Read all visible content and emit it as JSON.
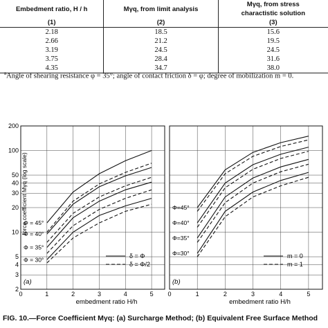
{
  "table": {
    "headers": [
      {
        "line1": "Embedment ratio, H / h",
        "line2": "(1)"
      },
      {
        "line1": "Mγq, from limit analysis",
        "line2": "(2)"
      },
      {
        "line1": "Mγq, from stress",
        "line1b": "charactistic solution",
        "line2": "(3)"
      }
    ],
    "rows": [
      [
        "2.18",
        "18.5",
        "15.6"
      ],
      [
        "2.66",
        "21.2",
        "19.5"
      ],
      [
        "3.19",
        "24.5",
        "24.5"
      ],
      [
        "3.75",
        "28.4",
        "31.6"
      ],
      [
        "4.35",
        "34.7",
        "38.0"
      ]
    ]
  },
  "footnote": {
    "marker": "a",
    "text": "Angle of shearing resistance φ = 35°; angle of contact friction δ = φ; degree of mobilization m = 0."
  },
  "chart_data": [
    {
      "type": "line",
      "panel_label": "(a)",
      "xlabel": "embedment ratio H/h",
      "ylabel": "force coefficient Mγq (log scale)",
      "xlim": [
        0,
        5.5
      ],
      "ylim": [
        2,
        200
      ],
      "yscale": "log",
      "xticks": [
        0,
        1,
        2,
        3,
        4,
        5
      ],
      "yticks": [
        2,
        3,
        4,
        5,
        10,
        20,
        30,
        40,
        50,
        100,
        200
      ],
      "yticklabels": [
        "2",
        "3",
        "4",
        "5",
        "10",
        "20",
        "30",
        "40",
        "50",
        "100",
        "200"
      ],
      "curve_labels": [
        "Φ = 45°",
        "Φ = 40°",
        "Φ = 35°",
        "Φ = 30°"
      ],
      "legend": [
        {
          "label": "δ = Φ",
          "style": "solid"
        },
        {
          "label": "δ = Φ/2",
          "style": "dashed"
        }
      ],
      "legend_position": "lower-right",
      "series": [
        {
          "phi": 45,
          "style": "solid",
          "x": [
            1,
            2,
            3,
            4,
            5
          ],
          "y": [
            13,
            31,
            52,
            75,
            100
          ]
        },
        {
          "phi": 45,
          "style": "dashed",
          "x": [
            1,
            2,
            3,
            4,
            5
          ],
          "y": [
            10,
            24,
            39,
            54,
            70
          ]
        },
        {
          "phi": 40,
          "style": "solid",
          "x": [
            1,
            2,
            3,
            4,
            5
          ],
          "y": [
            9.5,
            22,
            36,
            49,
            62
          ]
        },
        {
          "phi": 40,
          "style": "dashed",
          "x": [
            1,
            2,
            3,
            4,
            5
          ],
          "y": [
            7.5,
            17,
            27,
            37,
            47
          ]
        },
        {
          "phi": 35,
          "style": "solid",
          "x": [
            1,
            2,
            3,
            4,
            5
          ],
          "y": [
            6.5,
            15,
            24,
            33,
            41
          ]
        },
        {
          "phi": 35,
          "style": "dashed",
          "x": [
            1,
            2,
            3,
            4,
            5
          ],
          "y": [
            5.5,
            12,
            19,
            26,
            33
          ]
        },
        {
          "phi": 30,
          "style": "solid",
          "x": [
            1,
            2,
            3,
            4,
            5
          ],
          "y": [
            4.6,
            10,
            16,
            21,
            26
          ]
        },
        {
          "phi": 30,
          "style": "dashed",
          "x": [
            1,
            2,
            3,
            4,
            5
          ],
          "y": [
            4.2,
            8.5,
            13,
            18,
            22
          ]
        }
      ]
    },
    {
      "type": "line",
      "panel_label": "(b)",
      "xlabel": "embedment ratio H/h",
      "xlim": [
        0,
        5.5
      ],
      "ylim": [
        2,
        200
      ],
      "yscale": "log",
      "xticks": [
        0,
        1,
        2,
        3,
        4,
        5
      ],
      "curve_labels": [
        "Φ=45°",
        "Φ=40°",
        "Φ=35°",
        "Φ=30°"
      ],
      "legend": [
        {
          "label": "m = 0",
          "style": "solid"
        },
        {
          "label": "m = 1",
          "style": "dashed"
        }
      ],
      "legend_position": "lower-right",
      "series": [
        {
          "phi": 45,
          "style": "solid",
          "x": [
            1,
            2,
            3,
            4,
            5
          ],
          "y": [
            20,
            58,
            95,
            125,
            150
          ]
        },
        {
          "phi": 45,
          "style": "dashed",
          "x": [
            1,
            2,
            3,
            4,
            5
          ],
          "y": [
            18,
            52,
            85,
            112,
            135
          ]
        },
        {
          "phi": 40,
          "style": "solid",
          "x": [
            1,
            2,
            3,
            4,
            5
          ],
          "y": [
            13,
            40,
            67,
            90,
            110
          ]
        },
        {
          "phi": 40,
          "style": "dashed",
          "x": [
            1,
            2,
            3,
            4,
            5
          ],
          "y": [
            11.5,
            35,
            59,
            80,
            98
          ]
        },
        {
          "phi": 35,
          "style": "solid",
          "x": [
            1,
            2,
            3,
            4,
            5
          ],
          "y": [
            8.5,
            27,
            46,
            63,
            78
          ]
        },
        {
          "phi": 35,
          "style": "dashed",
          "x": [
            1,
            2,
            3,
            4,
            5
          ],
          "y": [
            7.5,
            23,
            40,
            55,
            68
          ]
        },
        {
          "phi": 30,
          "style": "solid",
          "x": [
            1,
            2,
            3,
            4,
            5
          ],
          "y": [
            5.5,
            18,
            31,
            43,
            54
          ]
        },
        {
          "phi": 30,
          "style": "dashed",
          "x": [
            1,
            2,
            3,
            4,
            5
          ],
          "y": [
            5,
            15.5,
            27,
            37,
            47
          ]
        }
      ]
    }
  ],
  "caption": {
    "text": "FIG. 10.—Force Coefficient Mγq: (a) Surcharge Method; (b) Equivalent Free Surface Method"
  }
}
